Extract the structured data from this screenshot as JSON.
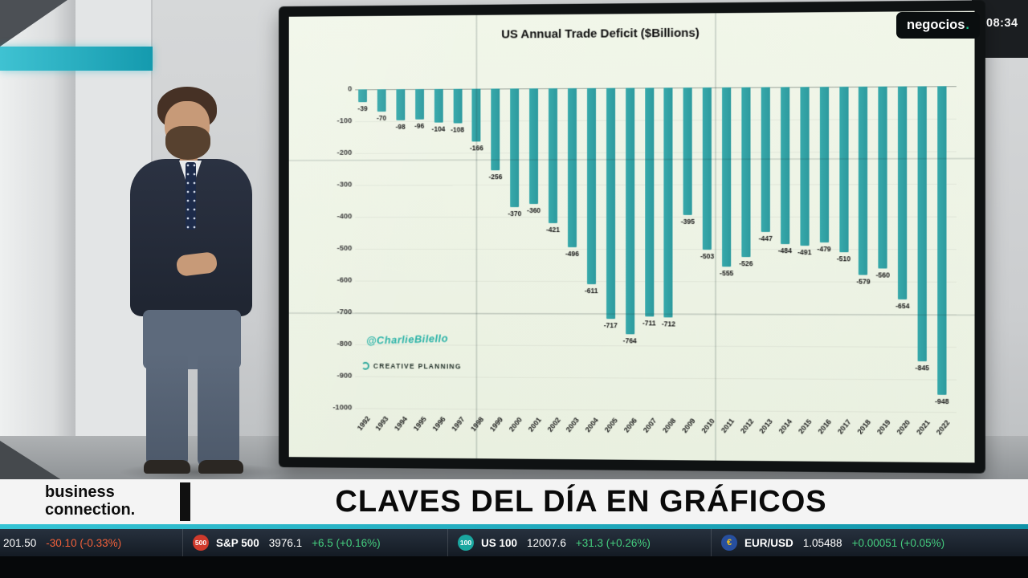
{
  "channel": {
    "logo": "negocios",
    "logo_dot": ".",
    "time": "08:34"
  },
  "studio": {
    "brand_line1": "business",
    "brand_line2": "connection."
  },
  "headline": "CLAVES DEL DÍA EN GRÁFICOS",
  "ticker": {
    "up_color": "#44cd7e",
    "down_color": "#f2603a",
    "items": [
      {
        "badge": "",
        "badge_color": "",
        "name": "",
        "value": "201.50",
        "change": "-30.10 (-0.33%)",
        "direction": "down"
      },
      {
        "badge": "500",
        "badge_color": "#cf3a2c",
        "name": "S&P 500",
        "value": "3976.1",
        "change": "+6.5 (+0.16%)",
        "direction": "up"
      },
      {
        "badge": "100",
        "badge_color": "#1aa7a0",
        "name": "US 100",
        "value": "12007.6",
        "change": "+31.3 (+0.26%)",
        "direction": "up"
      },
      {
        "badge": "€",
        "badge_color": "#274f9e",
        "name": "EUR/USD",
        "value": "1.05488",
        "change": "+0.00051 (+0.05%)",
        "direction": "up"
      }
    ]
  },
  "chart_data": {
    "type": "bar",
    "title": "US Annual Trade Deficit ($Billions)",
    "categories": [
      "1992",
      "1993",
      "1994",
      "1995",
      "1996",
      "1997",
      "1998",
      "1999",
      "2000",
      "2001",
      "2002",
      "2003",
      "2004",
      "2005",
      "2006",
      "2007",
      "2008",
      "2009",
      "2010",
      "2011",
      "2012",
      "2013",
      "2014",
      "2015",
      "2016",
      "2017",
      "2018",
      "2019",
      "2020",
      "2021",
      "2022"
    ],
    "values": [
      -39,
      -70,
      -98,
      -96,
      -104,
      -108,
      -166,
      -256,
      -370,
      -360,
      -421,
      -496,
      -611,
      -717,
      -764,
      -711,
      -712,
      -395,
      -503,
      -555,
      -526,
      -447,
      -484,
      -491,
      -479,
      -510,
      -579,
      -560,
      -654,
      -845,
      -948
    ],
    "yticks": [
      0,
      -100,
      -200,
      -300,
      -400,
      -500,
      -600,
      -700,
      -800,
      -900,
      -1000
    ],
    "ylim": [
      -1000,
      0
    ],
    "bar_color": "#37a9ab",
    "grid": false,
    "legend": "none",
    "watermark": "@CharlieBilello",
    "brand": "CREATIVE PLANNING"
  }
}
